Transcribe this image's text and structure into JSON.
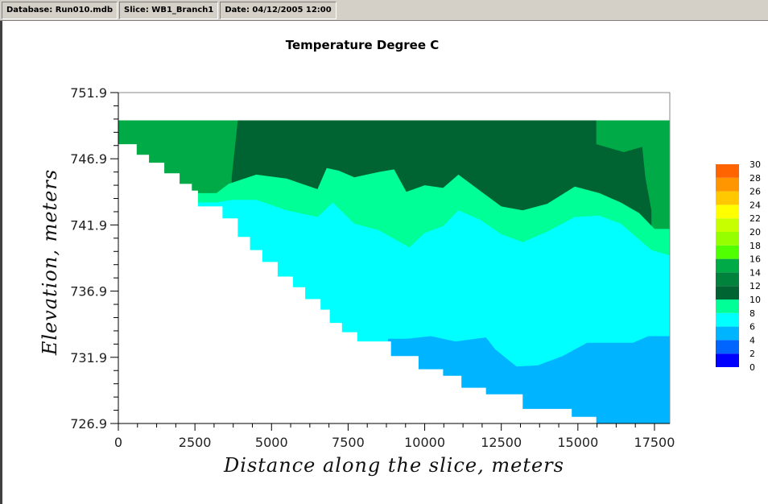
{
  "status_bar": {
    "database": "Database: Run010.mdb",
    "slice": "Slice: WB1_Branch1",
    "date": "Date: 04/12/2005 12:00"
  },
  "chart_data": {
    "type": "heatmap",
    "title": "Temperature Degree C",
    "xlabel": "Distance along the slice, meters",
    "ylabel": "Elevation, meters",
    "xlim": [
      0,
      18000
    ],
    "ylim": [
      726.9,
      751.9
    ],
    "x_ticks": [
      "0",
      "2500",
      "5000",
      "7500",
      "10000",
      "12500",
      "15000",
      "17500"
    ],
    "y_ticks": [
      "726.9",
      "731.9",
      "736.9",
      "741.9",
      "746.9",
      "751.9"
    ],
    "x_tick_values": [
      0,
      2500,
      5000,
      7500,
      10000,
      12500,
      15000,
      17500
    ],
    "y_tick_values": [
      726.9,
      731.9,
      736.9,
      741.9,
      746.9,
      751.9
    ],
    "grid": false,
    "legend_position": "right",
    "colorbar": {
      "levels": [
        0,
        2,
        4,
        6,
        8,
        10,
        12,
        14,
        16,
        18,
        20,
        22,
        24,
        26,
        28,
        30
      ],
      "labels": [
        "0",
        "2",
        "4",
        "6",
        "8",
        "10",
        "12",
        "14",
        "16",
        "18",
        "20",
        "22",
        "24",
        "26",
        "28",
        "30"
      ],
      "colors": [
        "#0000ff",
        "#0064ff",
        "#00b4ff",
        "#00ffff",
        "#00ff96",
        "#006432",
        "#00823c",
        "#00aa46",
        "#50ff00",
        "#96ff00",
        "#c8ff00",
        "#ffff00",
        "#ffc800",
        "#ff9600",
        "#ff6400",
        "#ff0000"
      ]
    },
    "regions": [
      {
        "band": "14-16",
        "color": "#00aa46",
        "polygon": [
          [
            0,
            749.8
          ],
          [
            18000,
            749.8
          ],
          [
            18000,
            726.9
          ],
          [
            0,
            726.9
          ]
        ]
      },
      {
        "band": "10-12",
        "color": "#006432",
        "polygon": [
          [
            3900,
            749.8
          ],
          [
            15600,
            749.8
          ],
          [
            15600,
            748.0
          ],
          [
            16500,
            747.4
          ],
          [
            17100,
            747.8
          ],
          [
            17200,
            745.5
          ],
          [
            17400,
            743.0
          ],
          [
            17400,
            741.6
          ],
          [
            18000,
            741.6
          ],
          [
            18000,
            726.9
          ],
          [
            3700,
            726.9
          ],
          [
            3700,
            745.5
          ]
        ]
      },
      {
        "band": "8-10",
        "color": "#00ff96",
        "polygon": [
          [
            2300,
            744.3
          ],
          [
            3200,
            744.3
          ],
          [
            3600,
            745.0
          ],
          [
            4500,
            745.7
          ],
          [
            5500,
            745.4
          ],
          [
            6500,
            744.6
          ],
          [
            6800,
            746.2
          ],
          [
            7200,
            746.0
          ],
          [
            7700,
            745.5
          ],
          [
            8500,
            745.9
          ],
          [
            9000,
            746.1
          ],
          [
            9400,
            744.4
          ],
          [
            10000,
            744.9
          ],
          [
            10600,
            744.7
          ],
          [
            11100,
            745.7
          ],
          [
            11800,
            744.5
          ],
          [
            12500,
            743.3
          ],
          [
            13200,
            743.0
          ],
          [
            14000,
            743.5
          ],
          [
            14900,
            744.8
          ],
          [
            15700,
            744.3
          ],
          [
            16400,
            743.6
          ],
          [
            17000,
            742.8
          ],
          [
            17500,
            741.6
          ],
          [
            18000,
            741.6
          ],
          [
            18000,
            726.9
          ],
          [
            2300,
            726.9
          ]
        ]
      },
      {
        "band": "6-8",
        "color": "#00ffff",
        "polygon": [
          [
            2500,
            743.6
          ],
          [
            3200,
            743.6
          ],
          [
            3700,
            743.8
          ],
          [
            4500,
            743.8
          ],
          [
            5500,
            743.0
          ],
          [
            6500,
            742.5
          ],
          [
            7000,
            743.6
          ],
          [
            7700,
            742.0
          ],
          [
            8500,
            741.5
          ],
          [
            9500,
            740.2
          ],
          [
            10000,
            741.3
          ],
          [
            10600,
            741.8
          ],
          [
            11100,
            743.0
          ],
          [
            11800,
            742.3
          ],
          [
            12500,
            741.2
          ],
          [
            13200,
            740.6
          ],
          [
            14000,
            741.4
          ],
          [
            14900,
            742.5
          ],
          [
            15700,
            742.6
          ],
          [
            16400,
            742.0
          ],
          [
            17400,
            740.0
          ],
          [
            18000,
            739.6
          ],
          [
            18000,
            726.9
          ],
          [
            2500,
            726.9
          ]
        ]
      },
      {
        "band": "4-6",
        "color": "#00b4ff",
        "polygon": [
          [
            8800,
            733.3
          ],
          [
            9400,
            733.3
          ],
          [
            10200,
            733.5
          ],
          [
            11000,
            733.1
          ],
          [
            12000,
            733.4
          ],
          [
            12300,
            732.5
          ],
          [
            13000,
            731.2
          ],
          [
            13700,
            731.3
          ],
          [
            14500,
            732.0
          ],
          [
            15300,
            733.0
          ],
          [
            16800,
            733.0
          ],
          [
            17300,
            733.5
          ],
          [
            18000,
            733.5
          ],
          [
            18000,
            726.9
          ],
          [
            8800,
            726.9
          ]
        ]
      }
    ],
    "bottom_boundary": [
      [
        0,
        748.0
      ],
      [
        600,
        748.0
      ],
      [
        600,
        747.2
      ],
      [
        1000,
        747.2
      ],
      [
        1000,
        746.6
      ],
      [
        1500,
        746.6
      ],
      [
        1500,
        745.8
      ],
      [
        2000,
        745.8
      ],
      [
        2000,
        745.0
      ],
      [
        2400,
        745.0
      ],
      [
        2400,
        744.5
      ],
      [
        2600,
        744.5
      ],
      [
        2600,
        743.3
      ],
      [
        3400,
        743.3
      ],
      [
        3400,
        742.4
      ],
      [
        3900,
        742.4
      ],
      [
        3900,
        741.0
      ],
      [
        4300,
        741.0
      ],
      [
        4300,
        740.0
      ],
      [
        4700,
        740.0
      ],
      [
        4700,
        739.1
      ],
      [
        5200,
        739.1
      ],
      [
        5200,
        738.0
      ],
      [
        5700,
        738.0
      ],
      [
        5700,
        737.2
      ],
      [
        6100,
        737.2
      ],
      [
        6100,
        736.3
      ],
      [
        6600,
        736.3
      ],
      [
        6600,
        735.5
      ],
      [
        6900,
        735.5
      ],
      [
        6900,
        734.5
      ],
      [
        7300,
        734.5
      ],
      [
        7300,
        733.8
      ],
      [
        7800,
        733.8
      ],
      [
        7800,
        733.1
      ],
      [
        8900,
        733.1
      ],
      [
        8900,
        732.0
      ],
      [
        9800,
        732.0
      ],
      [
        9800,
        731.0
      ],
      [
        10600,
        731.0
      ],
      [
        10600,
        730.5
      ],
      [
        11200,
        730.5
      ],
      [
        11200,
        729.6
      ],
      [
        12000,
        729.6
      ],
      [
        12000,
        729.1
      ],
      [
        13200,
        729.1
      ],
      [
        13200,
        728.0
      ],
      [
        14800,
        728.0
      ],
      [
        14800,
        727.4
      ],
      [
        15600,
        727.4
      ],
      [
        15600,
        726.9
      ],
      [
        18000,
        726.9
      ],
      [
        18000,
        726.5
      ],
      [
        0,
        726.5
      ]
    ]
  }
}
